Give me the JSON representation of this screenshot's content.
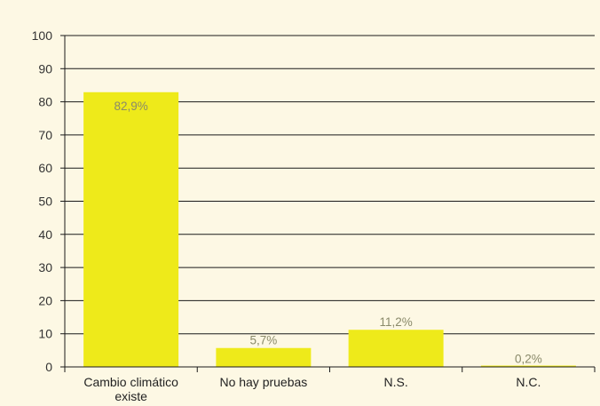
{
  "chart_data": {
    "type": "bar",
    "categories": [
      "Cambio climático existe",
      "No hay pruebas",
      "N.S.",
      "N.C."
    ],
    "category_lines": [
      [
        "Cambio climático",
        "existe"
      ],
      [
        "No hay pruebas"
      ],
      [
        "N.S."
      ],
      [
        "N.C."
      ]
    ],
    "values": [
      82.9,
      5.7,
      11.2,
      0.2
    ],
    "data_labels": [
      "82,9%",
      "5,7%",
      "11,2%",
      "0,2%"
    ],
    "yticks": [
      0,
      10,
      20,
      30,
      40,
      50,
      60,
      70,
      80,
      90,
      100
    ],
    "ylim": [
      0,
      100
    ],
    "title": "",
    "xlabel": "",
    "ylabel": "",
    "grid": true,
    "legend": "none",
    "colors": {
      "background": "#fdf8e4",
      "bar": "#eeea1a",
      "gridline": "#1a1a1a",
      "tick_text": "#333333",
      "data_label_text": "#8a8a6a"
    }
  }
}
